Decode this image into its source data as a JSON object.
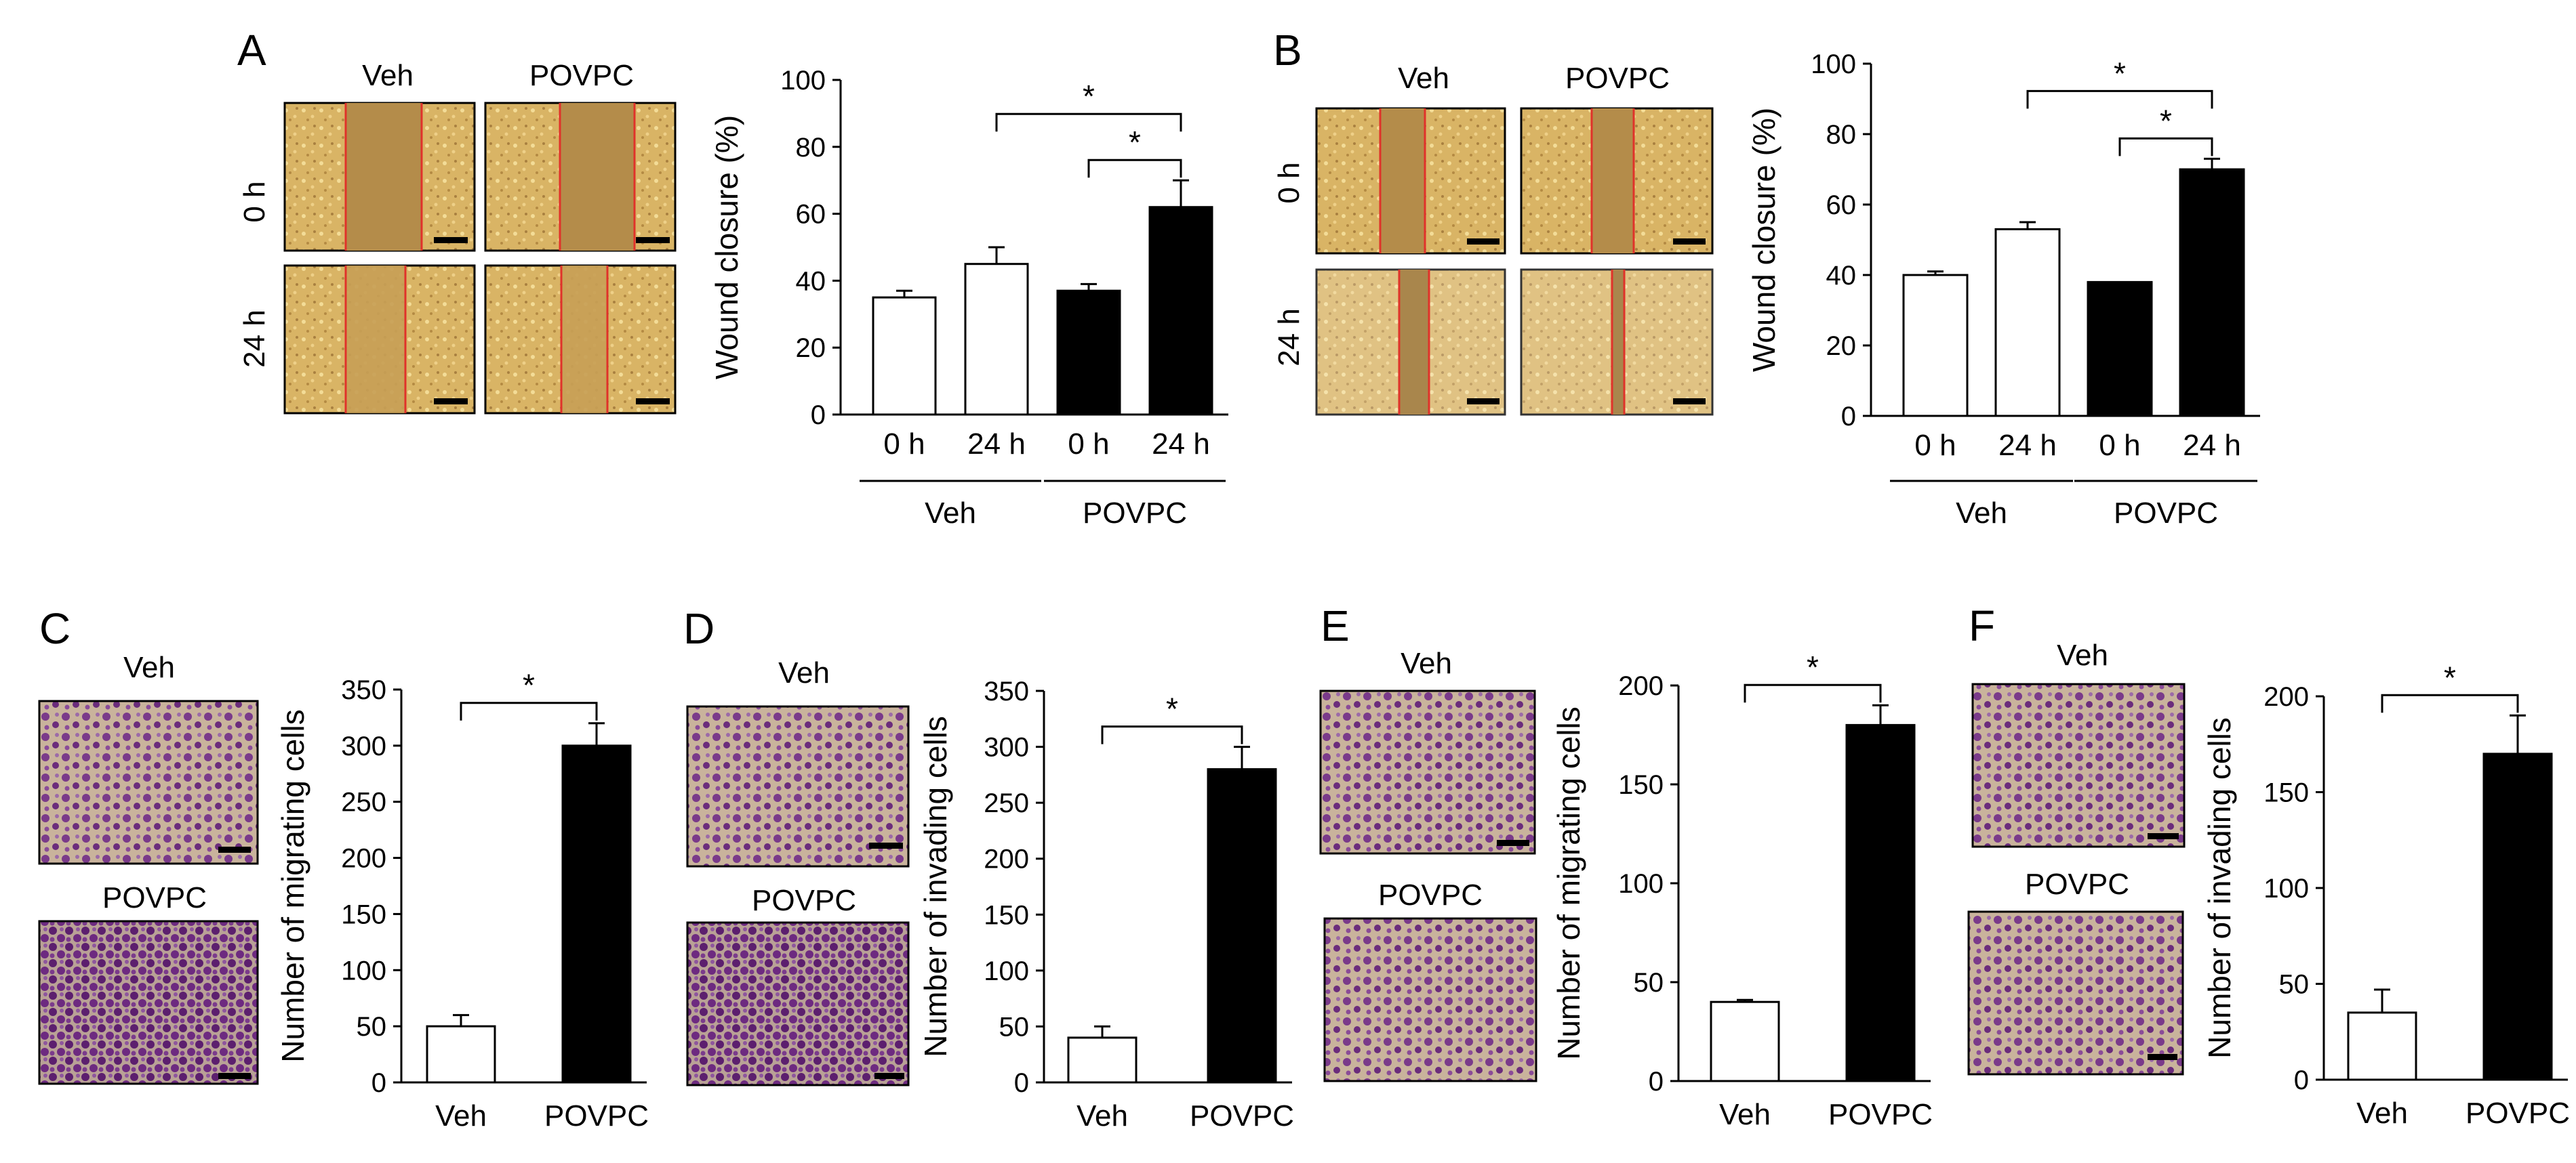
{
  "colors": {
    "scratch_bg": "#c8a252",
    "scratch_gap": "#b78f4c",
    "scratch_light": "#e7c77d",
    "wound_edge": "#e0322a",
    "stain_bg": "#c8b29a",
    "stain_cells": "#6e2e7e",
    "bar_filled": "#000000",
    "bar_empty": "#ffffff",
    "scale_bar": "#000000"
  },
  "icons": {
    "scale_bar": "scale-bar-icon",
    "micrograph": "micrograph-image"
  },
  "panel_A": {
    "letter": "A",
    "col_labels": [
      "Veh",
      "POVPC"
    ],
    "row_labels": [
      "0 h",
      "24 h"
    ],
    "chart_index": 0
  },
  "panel_B": {
    "letter": "B",
    "col_labels": [
      "Veh",
      "POVPC"
    ],
    "row_labels": [
      "0 h",
      "24 h"
    ],
    "chart_index": 1
  },
  "panel_C": {
    "letter": "C",
    "image_labels": [
      "Veh",
      "POVPC"
    ],
    "chart_index": 2
  },
  "panel_D": {
    "letter": "D",
    "image_labels": [
      "Veh",
      "POVPC"
    ],
    "chart_index": 3
  },
  "panel_E": {
    "letter": "E",
    "image_labels": [
      "Veh",
      "POVPC"
    ],
    "chart_index": 4
  },
  "panel_F": {
    "letter": "F",
    "image_labels": [
      "Veh",
      "POVPC"
    ],
    "chart_index": 5
  },
  "chart_data": [
    {
      "panel": "A",
      "type": "bar",
      "categories": [
        "0 h",
        "24 h",
        "0 h",
        "24 h"
      ],
      "groups": [
        {
          "label": "Veh",
          "span": [
            0,
            1
          ]
        },
        {
          "label": "POVPC",
          "span": [
            2,
            3
          ]
        }
      ],
      "values": [
        35,
        45,
        37,
        62
      ],
      "errors": [
        2,
        5,
        2,
        8
      ],
      "fills": [
        "white",
        "white",
        "black",
        "black"
      ],
      "ylabel": "Wound closure (%)",
      "ylim": [
        0,
        100
      ],
      "yticks": [
        0,
        20,
        40,
        60,
        80,
        100
      ],
      "significance": [
        {
          "from": 1,
          "to": 3,
          "label": "*"
        },
        {
          "from": 2,
          "to": 3,
          "label": "*"
        }
      ]
    },
    {
      "panel": "B",
      "type": "bar",
      "categories": [
        "0 h",
        "24 h",
        "0 h",
        "24 h"
      ],
      "groups": [
        {
          "label": "Veh",
          "span": [
            0,
            1
          ]
        },
        {
          "label": "POVPC",
          "span": [
            2,
            3
          ]
        }
      ],
      "values": [
        40,
        53,
        38,
        70
      ],
      "errors": [
        1,
        2,
        0,
        3
      ],
      "fills": [
        "white",
        "white",
        "black",
        "black"
      ],
      "ylabel": "Wound closure (%)",
      "ylim": [
        0,
        100
      ],
      "yticks": [
        0,
        20,
        40,
        60,
        80,
        100
      ],
      "significance": [
        {
          "from": 1,
          "to": 3,
          "label": "*"
        },
        {
          "from": 2,
          "to": 3,
          "label": "*"
        }
      ]
    },
    {
      "panel": "C",
      "type": "bar",
      "categories": [
        "Veh",
        "POVPC"
      ],
      "values": [
        50,
        300
      ],
      "errors": [
        10,
        20
      ],
      "fills": [
        "white",
        "black"
      ],
      "ylabel": "Number of migrating cells",
      "ylim": [
        0,
        350
      ],
      "yticks": [
        0,
        50,
        100,
        150,
        200,
        250,
        300,
        350
      ],
      "significance": [
        {
          "from": 0,
          "to": 1,
          "label": "*"
        }
      ]
    },
    {
      "panel": "D",
      "type": "bar",
      "categories": [
        "Veh",
        "POVPC"
      ],
      "values": [
        40,
        280
      ],
      "errors": [
        10,
        20
      ],
      "fills": [
        "white",
        "black"
      ],
      "ylabel": "Number of invading cells",
      "ylim": [
        0,
        350
      ],
      "yticks": [
        0,
        50,
        100,
        150,
        200,
        250,
        300,
        350
      ],
      "significance": [
        {
          "from": 0,
          "to": 1,
          "label": "*"
        }
      ]
    },
    {
      "panel": "E",
      "type": "bar",
      "categories": [
        "Veh",
        "POVPC"
      ],
      "values": [
        40,
        180
      ],
      "errors": [
        1,
        10
      ],
      "fills": [
        "white",
        "black"
      ],
      "ylabel": "Number of migrating cells",
      "ylim": [
        0,
        200
      ],
      "yticks": [
        0,
        50,
        100,
        150,
        200
      ],
      "significance": [
        {
          "from": 0,
          "to": 1,
          "label": "*"
        }
      ]
    },
    {
      "panel": "F",
      "type": "bar",
      "categories": [
        "Veh",
        "POVPC"
      ],
      "values": [
        35,
        170
      ],
      "errors": [
        12,
        20
      ],
      "fills": [
        "white",
        "black"
      ],
      "ylabel": "Number of invading cells",
      "ylim": [
        0,
        200
      ],
      "yticks": [
        0,
        50,
        100,
        150,
        200
      ],
      "significance": [
        {
          "from": 0,
          "to": 1,
          "label": "*"
        }
      ]
    }
  ]
}
